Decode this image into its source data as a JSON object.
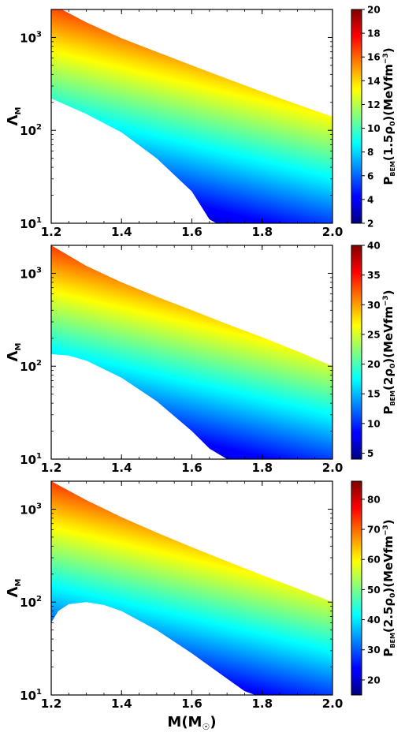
{
  "chart_data": [
    {
      "type": "heatmap",
      "xlabel": "",
      "ylabel": "Λ",
      "ylabel_sub": "M",
      "xlim": [
        1.2,
        2.0
      ],
      "ylim": [
        10,
        2000
      ],
      "yscale": "log",
      "x_ticks": [
        "1.2",
        "1.4",
        "1.6",
        "1.8",
        "2.0"
      ],
      "y_ticks": [
        {
          "base": "10",
          "exp": "1"
        },
        {
          "base": "10",
          "exp": "2"
        },
        {
          "base": "10",
          "exp": "3"
        }
      ],
      "grid": false,
      "colormap": "jet",
      "upper_boundary": {
        "x": [
          1.2,
          1.3,
          1.4,
          1.5,
          1.6,
          1.7,
          1.8,
          1.9,
          2.0
        ],
        "y": [
          2300,
          1450,
          980,
          700,
          500,
          360,
          260,
          190,
          140
        ]
      },
      "lower_boundary": {
        "x": [
          1.2,
          1.3,
          1.4,
          1.5,
          1.6,
          1.65,
          1.67
        ],
        "y": [
          220,
          150,
          95,
          50,
          22,
          11,
          10
        ]
      },
      "colorbar": {
        "label": "P",
        "label_sub": "BEM",
        "label_rest": "(1.5ρ",
        "label_rest_sub": "0",
        "label_tail": ")(MeVfm",
        "label_sup": "−3",
        "label_close": ")",
        "range": [
          2,
          20
        ],
        "ticks": [
          "2",
          "4",
          "6",
          "8",
          "10",
          "12",
          "14",
          "16",
          "18",
          "20"
        ]
      }
    },
    {
      "type": "heatmap",
      "xlabel": "",
      "ylabel": "Λ",
      "ylabel_sub": "M",
      "xlim": [
        1.2,
        2.0
      ],
      "ylim": [
        10,
        2000
      ],
      "yscale": "log",
      "x_ticks": [
        "1.2",
        "1.4",
        "1.6",
        "1.8",
        "2.0"
      ],
      "y_ticks": [
        {
          "base": "10",
          "exp": "1"
        },
        {
          "base": "10",
          "exp": "2"
        },
        {
          "base": "10",
          "exp": "3"
        }
      ],
      "grid": false,
      "colormap": "jet",
      "upper_boundary": {
        "x": [
          1.2,
          1.3,
          1.4,
          1.5,
          1.6,
          1.7,
          1.8,
          1.9,
          2.0
        ],
        "y": [
          2000,
          1200,
          800,
          560,
          400,
          285,
          205,
          145,
          100
        ]
      },
      "lower_boundary": {
        "x": [
          1.2,
          1.25,
          1.3,
          1.4,
          1.5,
          1.6,
          1.65,
          1.7
        ],
        "y": [
          135,
          130,
          115,
          75,
          42,
          20,
          13,
          10
        ]
      },
      "colorbar": {
        "label": "P",
        "label_sub": "BEM",
        "label_rest": "(2ρ",
        "label_rest_sub": "0",
        "label_tail": ")(MeVfm",
        "label_sup": "−3",
        "label_close": ")",
        "range": [
          4,
          40
        ],
        "ticks": [
          "5",
          "10",
          "15",
          "20",
          "25",
          "30",
          "35",
          "40"
        ]
      }
    },
    {
      "type": "heatmap",
      "xlabel": "M(M",
      "xlabel_sub": "☉",
      "xlabel_close": ")",
      "ylabel": "Λ",
      "ylabel_sub": "M",
      "xlim": [
        1.2,
        2.0
      ],
      "ylim": [
        10,
        2000
      ],
      "yscale": "log",
      "x_ticks": [
        "1.2",
        "1.4",
        "1.6",
        "1.8",
        "2.0"
      ],
      "y_ticks": [
        {
          "base": "10",
          "exp": "1"
        },
        {
          "base": "10",
          "exp": "2"
        },
        {
          "base": "10",
          "exp": "3"
        }
      ],
      "grid": false,
      "colormap": "jet",
      "upper_boundary": {
        "x": [
          1.2,
          1.3,
          1.4,
          1.5,
          1.6,
          1.7,
          1.8,
          1.9,
          2.0
        ],
        "y": [
          2000,
          1250,
          820,
          560,
          390,
          275,
          195,
          140,
          100
        ]
      },
      "lower_boundary": {
        "x": [
          1.2,
          1.22,
          1.25,
          1.3,
          1.35,
          1.4,
          1.5,
          1.6,
          1.7,
          1.75,
          1.78
        ],
        "y": [
          60,
          80,
          95,
          100,
          93,
          80,
          50,
          28,
          15,
          11,
          10
        ]
      },
      "colorbar": {
        "label": "P",
        "label_sub": "BEM",
        "label_rest": "(2.5ρ",
        "label_rest_sub": "0",
        "label_tail": ")(MeVfm",
        "label_sup": "−3",
        "label_close": ")",
        "range": [
          15,
          86
        ],
        "ticks": [
          "20",
          "30",
          "40",
          "50",
          "60",
          "70",
          "80"
        ]
      }
    }
  ]
}
